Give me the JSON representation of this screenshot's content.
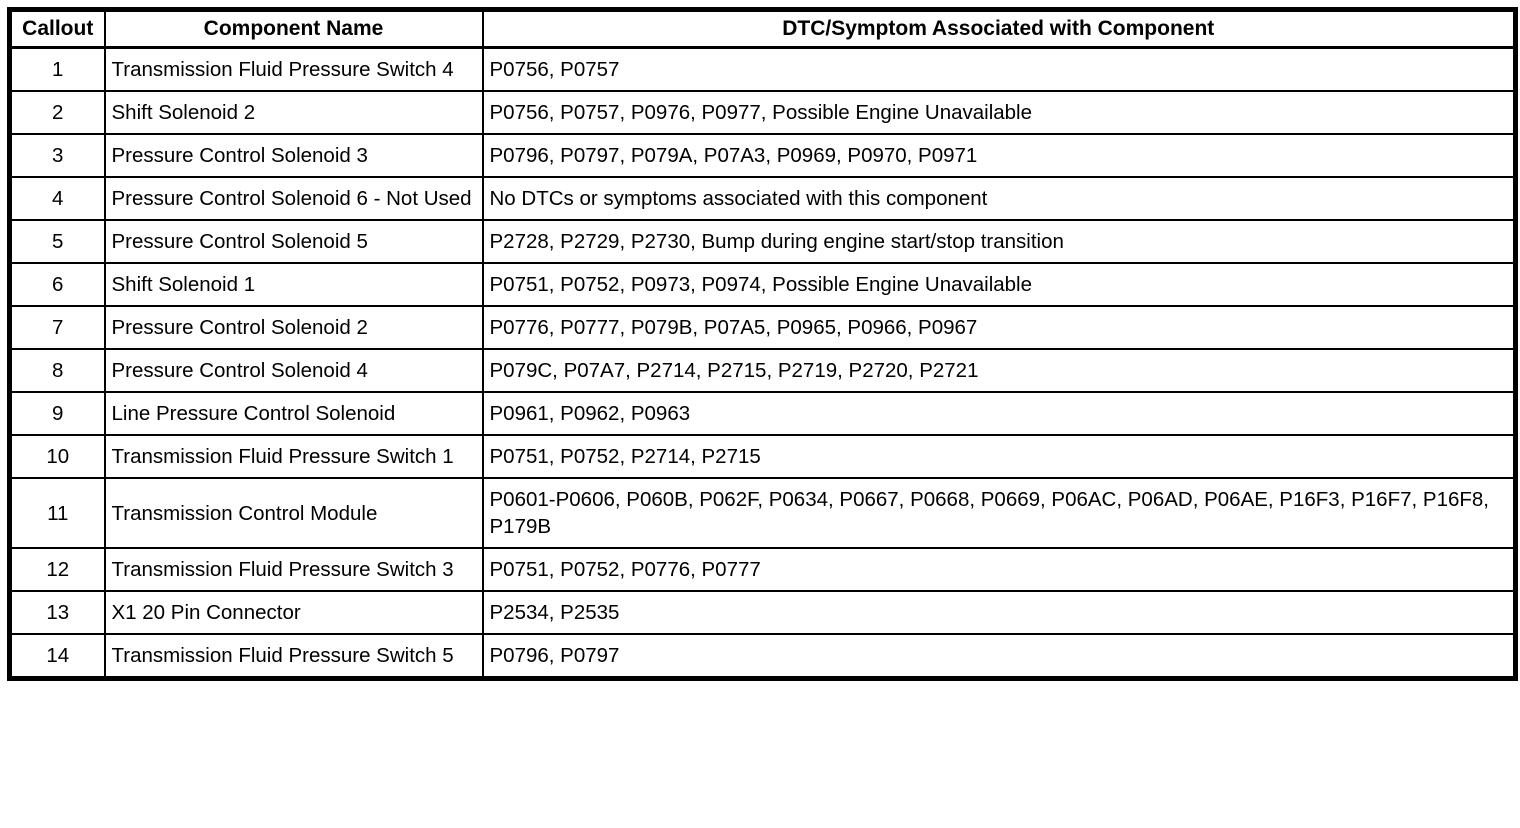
{
  "table": {
    "headers": {
      "callout": "Callout",
      "component": "Component Name",
      "dtc": "DTC/Symptom Associated with Component"
    },
    "rows": [
      {
        "callout": "1",
        "component": "Transmission Fluid Pressure Switch 4",
        "dtc": "P0756, P0757"
      },
      {
        "callout": "2",
        "component": "Shift Solenoid 2",
        "dtc": "P0756, P0757, P0976, P0977, Possible Engine Unavailable"
      },
      {
        "callout": "3",
        "component": "Pressure Control Solenoid 3",
        "dtc": "P0796, P0797, P079A, P07A3, P0969, P0970, P0971"
      },
      {
        "callout": "4",
        "component": "Pressure Control Solenoid 6 - Not Used",
        "dtc": "No DTCs or symptoms associated with this component"
      },
      {
        "callout": "5",
        "component": "Pressure Control Solenoid 5",
        "dtc": "P2728, P2729, P2730, Bump during engine start/stop transition"
      },
      {
        "callout": "6",
        "component": "Shift Solenoid 1",
        "dtc": "P0751, P0752, P0973, P0974, Possible Engine Unavailable"
      },
      {
        "callout": "7",
        "component": "Pressure Control Solenoid 2",
        "dtc": "P0776, P0777, P079B, P07A5, P0965, P0966, P0967"
      },
      {
        "callout": "8",
        "component": "Pressure Control Solenoid 4",
        "dtc": "P079C, P07A7, P2714, P2715, P2719, P2720, P2721"
      },
      {
        "callout": "9",
        "component": "Line Pressure Control Solenoid",
        "dtc": "P0961, P0962, P0963"
      },
      {
        "callout": "10",
        "component": "Transmission Fluid Pressure Switch 1",
        "dtc": "P0751, P0752, P2714, P2715"
      },
      {
        "callout": "11",
        "component": "Transmission Control Module",
        "dtc": "P0601-P0606, P060B, P062F, P0634, P0667, P0668, P0669, P06AC, P06AD, P06AE, P16F3, P16F7, P16F8, P179B"
      },
      {
        "callout": "12",
        "component": "Transmission Fluid Pressure Switch 3",
        "dtc": "P0751, P0752, P0776, P0777"
      },
      {
        "callout": "13",
        "component": "X1 20 Pin Connector",
        "dtc": "P2534, P2535"
      },
      {
        "callout": "14",
        "component": "Transmission Fluid Pressure Switch 5",
        "dtc": "P0796, P0797"
      }
    ]
  }
}
